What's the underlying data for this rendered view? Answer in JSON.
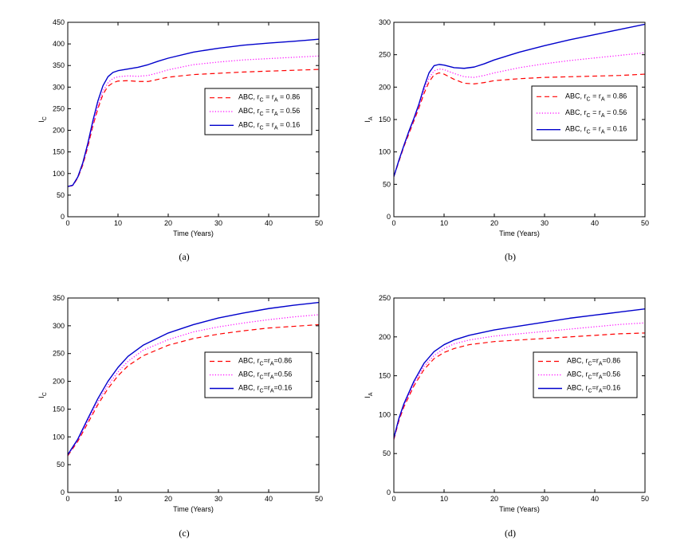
{
  "chart_data": [
    {
      "id": "a",
      "type": "line",
      "caption": "(a)",
      "title": "",
      "xlabel": "Time (Years)",
      "ylabel": {
        "base": "I",
        "sub": "C"
      },
      "xlim": [
        0,
        50
      ],
      "ylim": [
        0,
        450
      ],
      "xticks": [
        0,
        10,
        20,
        30,
        40,
        50
      ],
      "yticks": [
        0,
        50,
        100,
        150,
        200,
        250,
        300,
        350,
        400,
        450
      ],
      "legend_position": "center-right",
      "series": [
        {
          "name": "ABC, rC = rA = 0.86",
          "label": {
            "pre": "ABC, r",
            "s1": "C",
            "mid": " = r",
            "s2": "A",
            "post": " = 0.86"
          },
          "color": "#ff0000",
          "style": "dashed",
          "x": [
            0,
            1,
            2,
            3,
            4,
            5,
            6,
            7,
            8,
            9,
            10,
            12,
            14,
            16,
            18,
            20,
            25,
            30,
            35,
            40,
            45,
            50
          ],
          "y": [
            70,
            72,
            90,
            120,
            162,
            210,
            250,
            283,
            302,
            310,
            314,
            315,
            313,
            313,
            318,
            323,
            329,
            332,
            335,
            337,
            339,
            341
          ]
        },
        {
          "name": "ABC, rC = rA = 0.56",
          "label": {
            "pre": "ABC, r",
            "s1": "C",
            "mid": " = r",
            "s2": "A",
            "post": " = 0.56"
          },
          "color": "#ff00ff",
          "style": "dotted",
          "x": [
            0,
            1,
            2,
            3,
            4,
            5,
            6,
            7,
            8,
            9,
            10,
            12,
            14,
            16,
            18,
            20,
            25,
            30,
            35,
            40,
            45,
            50
          ],
          "y": [
            70,
            72,
            91,
            122,
            165,
            214,
            256,
            290,
            310,
            320,
            324,
            326,
            325,
            327,
            333,
            340,
            352,
            358,
            363,
            366,
            369,
            372
          ]
        },
        {
          "name": "ABC, rC = rA = 0.16",
          "label": {
            "pre": "ABC, r",
            "s1": "C",
            "mid": " = r",
            "s2": "A",
            "post": " = 0.16"
          },
          "color": "#0000cc",
          "style": "solid",
          "x": [
            0,
            1,
            2,
            3,
            4,
            5,
            6,
            7,
            8,
            9,
            10,
            12,
            14,
            16,
            18,
            20,
            25,
            30,
            35,
            40,
            45,
            50
          ],
          "y": [
            70,
            73,
            92,
            125,
            170,
            222,
            268,
            303,
            324,
            334,
            338,
            342,
            346,
            352,
            360,
            367,
            381,
            390,
            397,
            402,
            406,
            411
          ]
        }
      ]
    },
    {
      "id": "b",
      "type": "line",
      "caption": "(b)",
      "title": "",
      "xlabel": "Time (Years)",
      "ylabel": {
        "base": "I",
        "sub": "A"
      },
      "xlim": [
        0,
        50
      ],
      "ylim": [
        0,
        300
      ],
      "xticks": [
        0,
        10,
        20,
        30,
        40,
        50
      ],
      "yticks": [
        0,
        50,
        100,
        150,
        200,
        250,
        300
      ],
      "legend_position": "center-right",
      "series": [
        {
          "name": "ABC, rC = rA = 0.86",
          "label": {
            "pre": "ABC, r",
            "s1": "C",
            "mid": " = r",
            "s2": "A",
            "post": " = 0.86"
          },
          "color": "#ff0000",
          "style": "dashed",
          "x": [
            0,
            1,
            2,
            3,
            4,
            5,
            6,
            7,
            8,
            9,
            10,
            12,
            14,
            16,
            18,
            20,
            25,
            30,
            35,
            40,
            45,
            50
          ],
          "y": [
            62,
            85,
            108,
            128,
            148,
            168,
            190,
            208,
            219,
            222,
            220,
            212,
            206,
            205,
            207,
            210,
            213,
            215,
            216,
            217,
            218,
            220
          ]
        },
        {
          "name": "ABC, rC = rA = 0.56",
          "label": {
            "pre": "ABC, r",
            "s1": "C",
            "mid": " = r",
            "s2": "A",
            "post": " = 0.56"
          },
          "color": "#ff00ff",
          "style": "dotted",
          "x": [
            0,
            1,
            2,
            3,
            4,
            5,
            6,
            7,
            8,
            9,
            10,
            12,
            14,
            16,
            18,
            20,
            25,
            30,
            35,
            40,
            45,
            50
          ],
          "y": [
            62,
            86,
            109,
            130,
            150,
            171,
            195,
            214,
            225,
            228,
            227,
            221,
            216,
            215,
            218,
            222,
            230,
            236,
            241,
            245,
            249,
            253
          ]
        },
        {
          "name": "ABC, rC = rA = 0.16",
          "label": {
            "pre": "ABC, r",
            "s1": "C",
            "mid": " = r",
            "s2": "A",
            "post": " = 0.16"
          },
          "color": "#0000cc",
          "style": "solid",
          "x": [
            0,
            1,
            2,
            3,
            4,
            5,
            6,
            7,
            8,
            9,
            10,
            12,
            14,
            16,
            18,
            20,
            25,
            30,
            35,
            40,
            45,
            50
          ],
          "y": [
            62,
            87,
            110,
            132,
            152,
            174,
            200,
            222,
            233,
            235,
            234,
            230,
            229,
            231,
            236,
            242,
            254,
            264,
            273,
            281,
            289,
            297
          ]
        }
      ]
    },
    {
      "id": "c",
      "type": "line",
      "caption": "(c)",
      "title": "",
      "xlabel": "Time (Years)",
      "ylabel": {
        "base": "I",
        "sub": "C"
      },
      "xlim": [
        0,
        50
      ],
      "ylim": [
        0,
        350
      ],
      "xticks": [
        0,
        10,
        20,
        30,
        40,
        50
      ],
      "yticks": [
        0,
        50,
        100,
        150,
        200,
        250,
        300,
        350
      ],
      "legend_position": "center-right",
      "series": [
        {
          "name": "ABC, rC=rA=0.86",
          "label": {
            "pre": "ABC, r",
            "s1": "C",
            "mid": "=r",
            "s2": "A",
            "post": "=0.86"
          },
          "color": "#ff0000",
          "style": "dashed",
          "x": [
            0,
            2,
            4,
            6,
            8,
            10,
            12,
            15,
            20,
            25,
            30,
            35,
            40,
            45,
            50
          ],
          "y": [
            66,
            92,
            125,
            158,
            187,
            210,
            228,
            246,
            265,
            277,
            285,
            291,
            296,
            299,
            302
          ]
        },
        {
          "name": "ABC, rC=rA=0.56",
          "label": {
            "pre": "ABC, r",
            "s1": "C",
            "mid": "=r",
            "s2": "A",
            "post": "=0.56"
          },
          "color": "#ff00ff",
          "style": "dotted",
          "x": [
            0,
            2,
            4,
            6,
            8,
            10,
            12,
            15,
            20,
            25,
            30,
            35,
            40,
            45,
            50
          ],
          "y": [
            67,
            94,
            129,
            163,
            193,
            217,
            236,
            256,
            275,
            289,
            298,
            305,
            311,
            316,
            320
          ]
        },
        {
          "name": "ABC, rC=rA=0.16",
          "label": {
            "pre": "ABC, r",
            "s1": "C",
            "mid": "=r",
            "s2": "A",
            "post": "=0.16"
          },
          "color": "#0000cc",
          "style": "solid",
          "x": [
            0,
            2,
            4,
            6,
            8,
            10,
            12,
            15,
            20,
            25,
            30,
            35,
            40,
            45,
            50
          ],
          "y": [
            68,
            96,
            133,
            169,
            200,
            225,
            245,
            265,
            287,
            302,
            314,
            323,
            331,
            337,
            342
          ]
        }
      ]
    },
    {
      "id": "d",
      "type": "line",
      "caption": "(d)",
      "title": "",
      "xlabel": "Time (Years)",
      "ylabel": {
        "base": "I",
        "sub": "A"
      },
      "xlim": [
        0,
        50
      ],
      "ylim": [
        0,
        250
      ],
      "xticks": [
        0,
        10,
        20,
        30,
        40,
        50
      ],
      "yticks": [
        0,
        50,
        100,
        150,
        200,
        250
      ],
      "legend_position": "center-right",
      "series": [
        {
          "name": "ABC, rC=rA=0.86",
          "label": {
            "pre": "ABC, r",
            "s1": "C",
            "mid": "=r",
            "s2": "A",
            "post": "=0.86"
          },
          "color": "#ff0000",
          "style": "dashed",
          "x": [
            0,
            1,
            2,
            4,
            6,
            8,
            10,
            12,
            15,
            20,
            25,
            30,
            35,
            40,
            45,
            50
          ],
          "y": [
            68,
            92,
            110,
            137,
            158,
            172,
            180,
            185,
            190,
            194,
            196,
            198,
            200,
            202,
            204,
            205
          ]
        },
        {
          "name": "ABC, rC=rA=0.56",
          "label": {
            "pre": "ABC, r",
            "s1": "C",
            "mid": "=r",
            "s2": "A",
            "post": "=0.56"
          },
          "color": "#ff00ff",
          "style": "dotted",
          "x": [
            0,
            1,
            2,
            4,
            6,
            8,
            10,
            12,
            15,
            20,
            25,
            30,
            35,
            40,
            45,
            50
          ],
          "y": [
            69,
            93,
            112,
            140,
            162,
            176,
            185,
            191,
            196,
            201,
            204,
            207,
            210,
            213,
            216,
            218
          ]
        },
        {
          "name": "ABC, rC=rA=0.16",
          "label": {
            "pre": "ABC, r",
            "s1": "C",
            "mid": "=r",
            "s2": "A",
            "post": "=0.16"
          },
          "color": "#0000cc",
          "style": "solid",
          "x": [
            0,
            1,
            2,
            4,
            6,
            8,
            10,
            12,
            15,
            20,
            25,
            30,
            35,
            40,
            45,
            50
          ],
          "y": [
            70,
            95,
            114,
            143,
            166,
            181,
            190,
            196,
            202,
            209,
            214,
            219,
            224,
            228,
            232,
            236
          ]
        }
      ]
    }
  ]
}
